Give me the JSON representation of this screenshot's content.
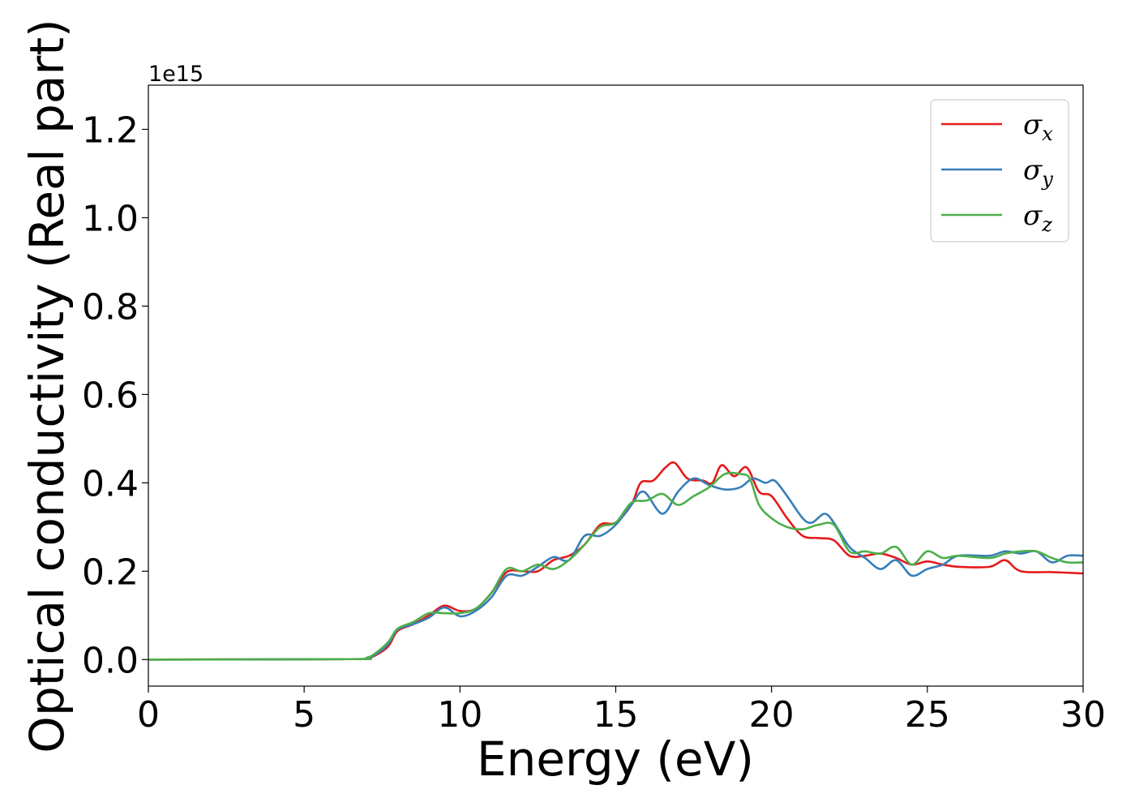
{
  "chart_data": {
    "type": "line",
    "xlabel": "Energy (eV)",
    "ylabel": "Optical conductivity (Real part)",
    "y_offset_text": "1e15",
    "xlim": [
      0,
      30
    ],
    "ylim": [
      -0.06,
      1.3
    ],
    "x_ticks": [
      0,
      5,
      10,
      15,
      20,
      25,
      30
    ],
    "x_tick_labels": [
      "0",
      "5",
      "10",
      "15",
      "20",
      "25",
      "30"
    ],
    "y_ticks": [
      0.0,
      0.2,
      0.4,
      0.6,
      0.8,
      1.0,
      1.2
    ],
    "y_tick_labels": [
      "0.0",
      "0.2",
      "0.4",
      "0.6",
      "0.8",
      "1.0",
      "1.2"
    ],
    "grid": false,
    "legend_position": "top-right",
    "series": [
      {
        "name": "σx",
        "legend_symbol": "σ",
        "legend_subscript": "x",
        "color": "#e41a1c",
        "points": [
          [
            0,
            0
          ],
          [
            6.5,
            0.001
          ],
          [
            7,
            0.003
          ],
          [
            7.3,
            0.01
          ],
          [
            7.7,
            0.03
          ],
          [
            8,
            0.065
          ],
          [
            8.5,
            0.08
          ],
          [
            9,
            0.1
          ],
          [
            9.5,
            0.122
          ],
          [
            10,
            0.11
          ],
          [
            10.5,
            0.115
          ],
          [
            11,
            0.15
          ],
          [
            11.5,
            0.198
          ],
          [
            12,
            0.2
          ],
          [
            12.5,
            0.2
          ],
          [
            13,
            0.225
          ],
          [
            13.5,
            0.235
          ],
          [
            14,
            0.26
          ],
          [
            14.5,
            0.305
          ],
          [
            15,
            0.31
          ],
          [
            15.5,
            0.35
          ],
          [
            15.8,
            0.4
          ],
          [
            16.2,
            0.405
          ],
          [
            16.6,
            0.435
          ],
          [
            16.9,
            0.445
          ],
          [
            17.3,
            0.41
          ],
          [
            17.8,
            0.405
          ],
          [
            18.1,
            0.4
          ],
          [
            18.4,
            0.44
          ],
          [
            18.8,
            0.415
          ],
          [
            19.2,
            0.435
          ],
          [
            19.6,
            0.38
          ],
          [
            20,
            0.37
          ],
          [
            20.5,
            0.32
          ],
          [
            21,
            0.28
          ],
          [
            21.5,
            0.275
          ],
          [
            22,
            0.27
          ],
          [
            22.5,
            0.235
          ],
          [
            23,
            0.235
          ],
          [
            23.5,
            0.24
          ],
          [
            24,
            0.23
          ],
          [
            24.5,
            0.215
          ],
          [
            25,
            0.222
          ],
          [
            25.5,
            0.215
          ],
          [
            26,
            0.21
          ],
          [
            27,
            0.21
          ],
          [
            27.5,
            0.225
          ],
          [
            28,
            0.2
          ],
          [
            29,
            0.198
          ],
          [
            30,
            0.195
          ]
        ]
      },
      {
        "name": "σy",
        "legend_symbol": "σ",
        "legend_subscript": "y",
        "color": "#377eb8",
        "points": [
          [
            0,
            0
          ],
          [
            6.5,
            0.001
          ],
          [
            7,
            0.003
          ],
          [
            7.3,
            0.012
          ],
          [
            7.7,
            0.035
          ],
          [
            8,
            0.068
          ],
          [
            8.5,
            0.08
          ],
          [
            9,
            0.095
          ],
          [
            9.5,
            0.118
          ],
          [
            10,
            0.098
          ],
          [
            10.5,
            0.11
          ],
          [
            11,
            0.14
          ],
          [
            11.5,
            0.19
          ],
          [
            12,
            0.19
          ],
          [
            12.5,
            0.21
          ],
          [
            13,
            0.232
          ],
          [
            13.5,
            0.225
          ],
          [
            14,
            0.28
          ],
          [
            14.5,
            0.28
          ],
          [
            15,
            0.305
          ],
          [
            15.5,
            0.35
          ],
          [
            15.9,
            0.38
          ],
          [
            16.5,
            0.33
          ],
          [
            17,
            0.38
          ],
          [
            17.5,
            0.41
          ],
          [
            18,
            0.395
          ],
          [
            18.5,
            0.385
          ],
          [
            19,
            0.39
          ],
          [
            19.4,
            0.41
          ],
          [
            19.8,
            0.4
          ],
          [
            20.1,
            0.405
          ],
          [
            20.5,
            0.37
          ],
          [
            21,
            0.32
          ],
          [
            21.3,
            0.31
          ],
          [
            21.7,
            0.33
          ],
          [
            22,
            0.31
          ],
          [
            22.5,
            0.255
          ],
          [
            23,
            0.23
          ],
          [
            23.5,
            0.205
          ],
          [
            24,
            0.225
          ],
          [
            24.5,
            0.19
          ],
          [
            25,
            0.205
          ],
          [
            25.5,
            0.215
          ],
          [
            26,
            0.235
          ],
          [
            27,
            0.235
          ],
          [
            27.5,
            0.245
          ],
          [
            28,
            0.24
          ],
          [
            28.5,
            0.245
          ],
          [
            29,
            0.22
          ],
          [
            29.5,
            0.235
          ],
          [
            30,
            0.235
          ]
        ]
      },
      {
        "name": "σz",
        "legend_symbol": "σ",
        "legend_subscript": "z",
        "color": "#4daf4a",
        "points": [
          [
            0,
            0
          ],
          [
            6.5,
            0.001
          ],
          [
            7,
            0.004
          ],
          [
            7.3,
            0.015
          ],
          [
            7.7,
            0.04
          ],
          [
            8,
            0.07
          ],
          [
            8.5,
            0.085
          ],
          [
            9,
            0.105
          ],
          [
            9.5,
            0.105
          ],
          [
            10,
            0.105
          ],
          [
            10.5,
            0.115
          ],
          [
            11,
            0.15
          ],
          [
            11.5,
            0.205
          ],
          [
            12,
            0.2
          ],
          [
            12.5,
            0.215
          ],
          [
            13,
            0.205
          ],
          [
            13.5,
            0.225
          ],
          [
            14,
            0.26
          ],
          [
            14.5,
            0.3
          ],
          [
            15,
            0.31
          ],
          [
            15.5,
            0.355
          ],
          [
            16,
            0.36
          ],
          [
            16.5,
            0.375
          ],
          [
            17,
            0.35
          ],
          [
            17.5,
            0.37
          ],
          [
            18,
            0.39
          ],
          [
            18.5,
            0.42
          ],
          [
            19,
            0.42
          ],
          [
            19.3,
            0.41
          ],
          [
            19.6,
            0.35
          ],
          [
            20,
            0.32
          ],
          [
            20.5,
            0.3
          ],
          [
            21,
            0.295
          ],
          [
            21.5,
            0.305
          ],
          [
            22,
            0.305
          ],
          [
            22.5,
            0.245
          ],
          [
            23,
            0.245
          ],
          [
            23.5,
            0.24
          ],
          [
            24,
            0.255
          ],
          [
            24.5,
            0.215
          ],
          [
            25,
            0.245
          ],
          [
            25.5,
            0.23
          ],
          [
            26,
            0.235
          ],
          [
            27,
            0.23
          ],
          [
            27.5,
            0.24
          ],
          [
            28,
            0.245
          ],
          [
            28.5,
            0.245
          ],
          [
            29,
            0.23
          ],
          [
            29.5,
            0.22
          ],
          [
            30,
            0.22
          ]
        ]
      }
    ]
  }
}
